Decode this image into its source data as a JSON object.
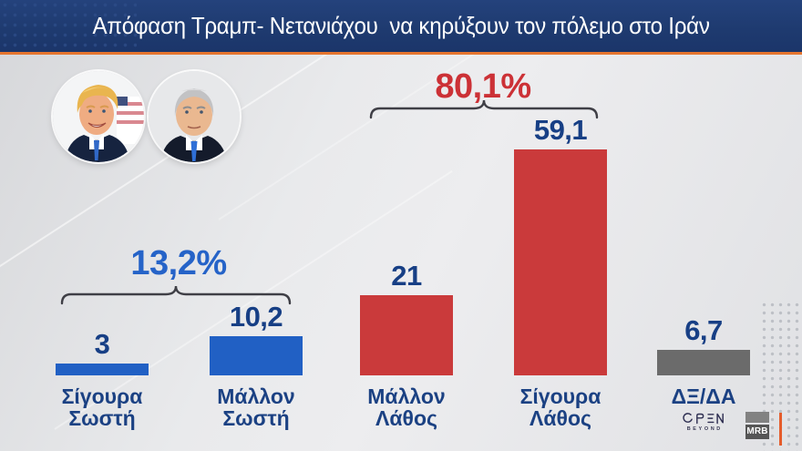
{
  "header": {
    "title": "Απόφαση Τραμπ- Νετανιάχου  να κηρύξουν τον πόλεμο στο Ιράν"
  },
  "portraits": [
    {
      "icon": "trump-portrait-icon"
    },
    {
      "icon": "netanyahu-portrait-icon"
    }
  ],
  "chart_data": {
    "type": "bar",
    "title": "Απόφαση Τραμπ- Νετανιάχου να κηρύξουν τον πόλεμο στο Ιράν",
    "xlabel": "",
    "ylabel": "",
    "ylim": [
      0,
      63
    ],
    "grid": false,
    "legend": false,
    "unit": "%",
    "categories": [
      "Σίγουρα Σωστή",
      "Μάλλον Σωστή",
      "Μάλλον Λάθος",
      "Σίγουρα Λάθος",
      "ΔΞ/ΔΑ"
    ],
    "values": [
      3,
      10.2,
      21,
      59.1,
      6.7
    ],
    "bars": [
      {
        "category": "Σίγουρα\nΣωστή",
        "value": 3,
        "display": "3",
        "color": "#2160c4"
      },
      {
        "category": "Μάλλον\nΣωστή",
        "value": 10.2,
        "display": "10,2",
        "color": "#2160c4"
      },
      {
        "category": "Μάλλον\nΛάθος",
        "value": 21,
        "display": "21",
        "color": "#ca3a3b"
      },
      {
        "category": "Σίγουρα\nΛάθος",
        "value": 59.1,
        "display": "59,1",
        "color": "#ca3a3b"
      },
      {
        "category": "ΔΞ/ΔΑ",
        "value": 6.7,
        "display": "6,7",
        "color": "#6b6b6b"
      }
    ],
    "groups": [
      {
        "label": "13,2%",
        "value": 13.2,
        "color": "#2563c8",
        "spans": [
          "Σίγουρα Σωστή",
          "Μάλλον Σωστή"
        ]
      },
      {
        "label": "80,1%",
        "value": 80.1,
        "color": "#cc3136",
        "spans": [
          "Μάλλον Λάθος",
          "Σίγουρα Λάθος"
        ]
      }
    ]
  },
  "logos": {
    "open": {
      "word": "OPEN",
      "sub": "BEYOND"
    },
    "mrb": {
      "text": "MRB"
    }
  },
  "colors": {
    "header_bg": "#1e3a6f",
    "header_accent": "#e5752f",
    "bar_blue": "#2160c4",
    "bar_red": "#ca3a3b",
    "bar_gray": "#6b6b6b",
    "value_text": "#173f85",
    "group_blue": "#2563c8",
    "group_red": "#cc3136"
  }
}
